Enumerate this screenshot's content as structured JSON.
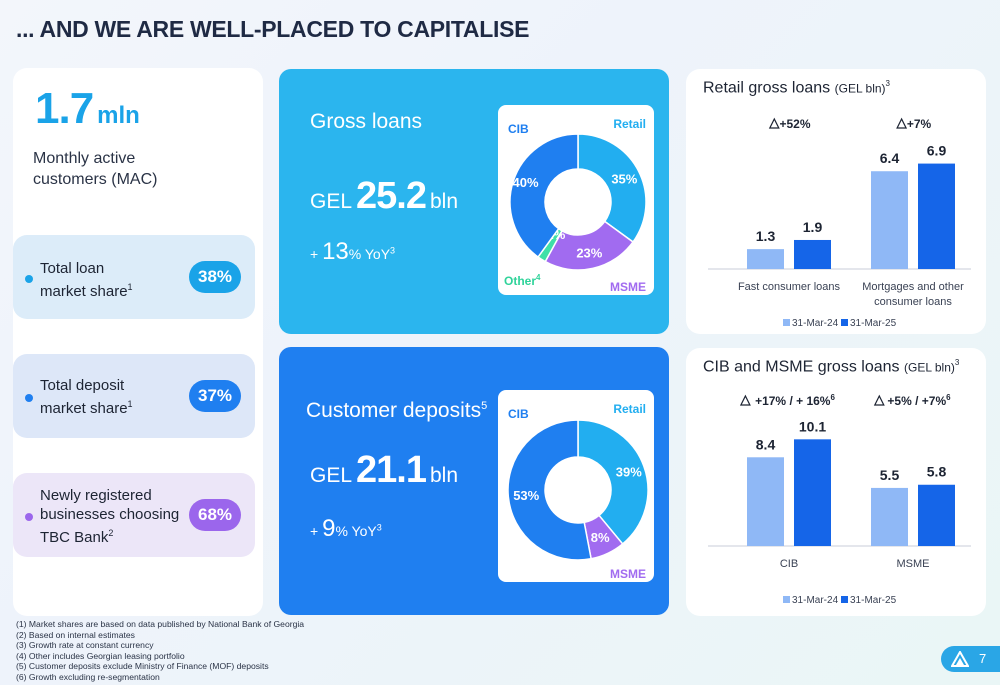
{
  "title": "... AND WE ARE WELL-PLACED TO CAPITALISE",
  "mac": {
    "value": "1.7",
    "unit": "mln",
    "label": "Monthly active customers (MAC)"
  },
  "pills": [
    {
      "line1": "Total loan",
      "line2": "market share",
      "sup": "1",
      "value": "38%"
    },
    {
      "line1": "Total deposit",
      "line2": "market share",
      "sup": "1",
      "value": "37%"
    },
    {
      "line1": "Newly registered",
      "line2": "businesses choosing",
      "line3": "TBC Bank",
      "sup": "2",
      "value": "68%"
    }
  ],
  "loans": {
    "title": "Gross loans",
    "currency": "GEL",
    "value": "25.2",
    "unit": "bln",
    "growth_prefix": "+",
    "growth_value": "13",
    "growth_suffix": "% YoY",
    "growth_sup": "3",
    "donut": {
      "segments": [
        {
          "name": "Retail",
          "value": 35,
          "label": "35%",
          "color": "#22aef0"
        },
        {
          "name": "MSME",
          "value": 23,
          "label": "23%",
          "color": "#a16bf0"
        },
        {
          "name": "Other",
          "value": 2,
          "label": "2%",
          "color": "#3fe0a8"
        },
        {
          "name": "CIB",
          "value": 40,
          "label": "40%",
          "color": "#1f7ff0"
        }
      ],
      "names": {
        "cib": "CIB",
        "retail": "Retail",
        "msme": "MSME",
        "other": "Other",
        "other_sup": "4"
      }
    }
  },
  "deposits": {
    "title": "Customer deposits",
    "title_sup": "5",
    "currency": "GEL",
    "value": "21.1",
    "unit": "bln",
    "growth_prefix": "+",
    "growth_value": "9",
    "growth_suffix": "% YoY",
    "growth_sup": "3",
    "donut": {
      "segments": [
        {
          "name": "Retail",
          "value": 39,
          "label": "39%",
          "color": "#22aef0"
        },
        {
          "name": "MSME",
          "value": 8,
          "label": "8%",
          "color": "#a16bf0"
        },
        {
          "name": "CIB",
          "value": 53,
          "label": "53%",
          "color": "#1f7ff0"
        }
      ],
      "names": {
        "cib": "CIB",
        "retail": "Retail",
        "msme": "MSME"
      }
    }
  },
  "chart_data": [
    {
      "type": "bar",
      "title": "Retail gross loans",
      "title_unit": "(GEL bln)",
      "title_sup": "3",
      "categories": [
        "Fast consumer loans",
        "Mortgages and other consumer loans"
      ],
      "category_lines": [
        [
          "Fast consumer loans"
        ],
        [
          "Mortgages and other",
          "consumer loans"
        ]
      ],
      "series": [
        {
          "name": "31-Mar-24",
          "values": [
            1.3,
            6.4
          ],
          "color": "#8fb8f6"
        },
        {
          "name": "31-Mar-25",
          "values": [
            1.9,
            6.9
          ],
          "color": "#1565e8"
        }
      ],
      "value_labels": [
        [
          "1.3",
          "6.4"
        ],
        [
          "1.9",
          "6.9"
        ]
      ],
      "growth": [
        "+52%",
        "+7%"
      ],
      "growth_sup": [
        "",
        ""
      ],
      "ylim": [
        0,
        7.2
      ],
      "legend": "bottom"
    },
    {
      "type": "bar",
      "title": "CIB and MSME gross loans",
      "title_unit": "(GEL bln)",
      "title_sup": "3",
      "categories": [
        "CIB",
        "MSME"
      ],
      "category_lines": [
        [
          "CIB"
        ],
        [
          "MSME"
        ]
      ],
      "series": [
        {
          "name": "31-Mar-24",
          "values": [
            8.4,
            5.5
          ],
          "color": "#8fb8f6"
        },
        {
          "name": "31-Mar-25",
          "values": [
            10.1,
            5.8
          ],
          "color": "#1565e8"
        }
      ],
      "value_labels": [
        [
          "8.4",
          "5.5"
        ],
        [
          "10.1",
          "5.8"
        ]
      ],
      "growth": [
        "+17% / + 16%",
        "+5% / +7%"
      ],
      "growth_sup": [
        "6",
        "6"
      ],
      "ylim": [
        0,
        10.7
      ],
      "legend": "bottom"
    }
  ],
  "footnotes": [
    "(1) Market shares are based on data published by National Bank of Georgia",
    "(2) Based on internal estimates",
    "(3) Growth rate at constant currency",
    "(4) Other includes Georgian leasing portfolio",
    "(5) Customer deposits exclude Ministry of Finance (MOF) deposits",
    "(6) Growth excluding re-segmentation"
  ],
  "page_number": "7",
  "colors": {
    "accent": "#1aa3e8",
    "loans_bg": "#2bb5ee",
    "deposits_bg": "#1f7ff0",
    "pill1_bg": "#dcecf9",
    "pill2_bg": "#dde7f8",
    "pill3_bg": "#ece6f8",
    "badge1": "#1aa3e8",
    "badge2": "#1f7ff0",
    "badge3": "#9b66ec"
  },
  "icons": {
    "logo": "tbc-triangle-icon",
    "growth": "triangle-up-icon"
  }
}
